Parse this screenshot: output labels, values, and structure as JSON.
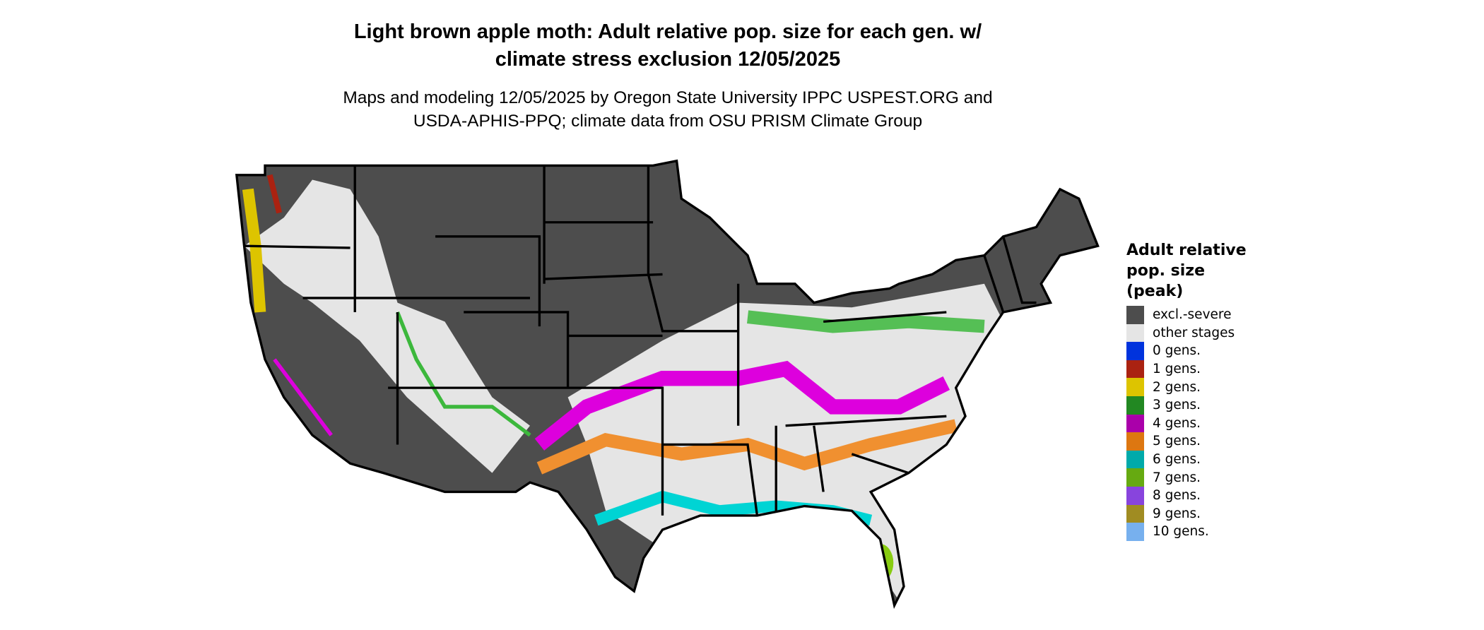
{
  "header": {
    "title_line1": "Light brown apple moth: Adult relative pop. size for each gen. w/",
    "title_line2": "climate stress exclusion 12/05/2025",
    "subtitle_line1": "Maps and modeling 12/05/2025 by Oregon State University IPPC USPEST.ORG and",
    "subtitle_line2": "USDA-APHIS-PPQ; climate data from OSU PRISM Climate Group"
  },
  "map": {
    "region": "Contiguous United States",
    "colors": {
      "excluded": "#4d4d4d",
      "other": "#e5e5e5",
      "border": "#000000"
    }
  },
  "legend": {
    "title_line1": "Adult relative",
    "title_line2": "pop. size",
    "title_line3": "(peak)",
    "items": [
      {
        "label": "excl.-severe",
        "color": "#4d4d4d"
      },
      {
        "label": "other stages",
        "color": "#e5e5e5"
      },
      {
        "label": "0 gens.",
        "color": "#0033dd"
      },
      {
        "label": "1 gens.",
        "color": "#aa2211"
      },
      {
        "label": "2 gens.",
        "color": "#ddc400"
      },
      {
        "label": "3 gens.",
        "color": "#228822"
      },
      {
        "label": "4 gens.",
        "color": "#aa00aa"
      },
      {
        "label": "5 gens.",
        "color": "#dd7711"
      },
      {
        "label": "6 gens.",
        "color": "#00aaaa"
      },
      {
        "label": "7 gens.",
        "color": "#66aa11"
      },
      {
        "label": "8 gens.",
        "color": "#8844dd"
      },
      {
        "label": "9 gens.",
        "color": "#a08c22"
      },
      {
        "label": "10 gens.",
        "color": "#77b0ee"
      }
    ]
  }
}
